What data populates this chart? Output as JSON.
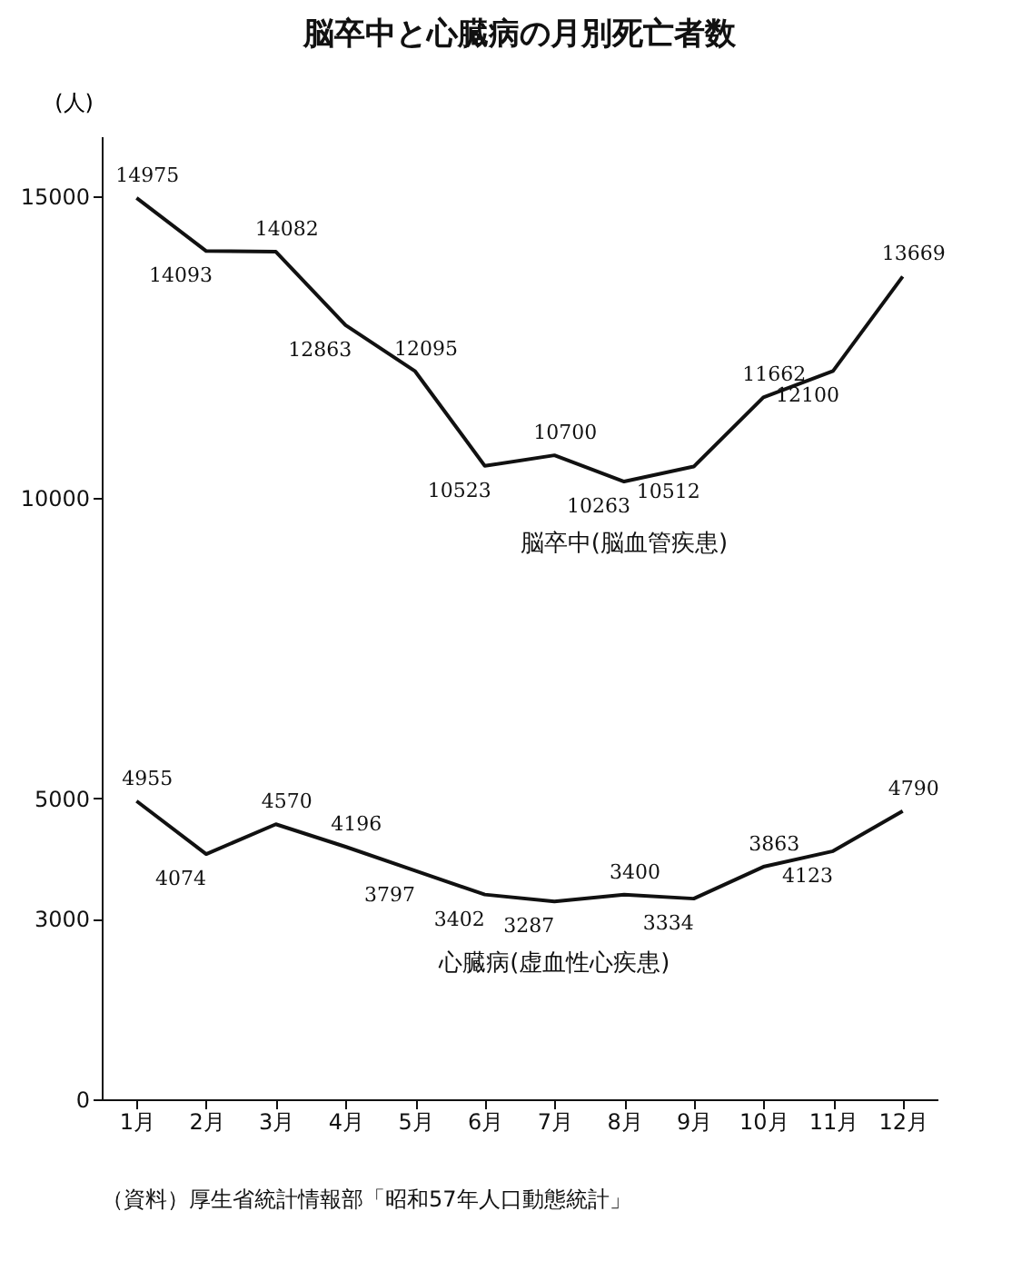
{
  "chart_data": {
    "type": "line",
    "title": "脳卒中と心臓病の月別死亡者数",
    "ylabel": "(人)",
    "categories": [
      "1月",
      "2月",
      "3月",
      "4月",
      "5月",
      "6月",
      "7月",
      "8月",
      "9月",
      "10月",
      "11月",
      "12月"
    ],
    "series": [
      {
        "name": "脳卒中(脳血管疾患)",
        "color": "#111111",
        "values": [
          14975,
          14093,
          14082,
          12863,
          12095,
          10523,
          10700,
          10263,
          10512,
          11662,
          12100,
          13669
        ]
      },
      {
        "name": "心臓病(虚血性心疾患)",
        "color": "#111111",
        "values": [
          4955,
          4074,
          4570,
          4196,
          3797,
          3402,
          3287,
          3400,
          3334,
          3863,
          4123,
          4790
        ]
      }
    ],
    "ylim": [
      0,
      16000
    ],
    "yticks": [
      0,
      3000,
      5000,
      10000,
      15000
    ],
    "grid": false,
    "data_labels": true,
    "annotations": [
      "（資料）厚生省統計情報部「昭和57年人口動態統計」"
    ]
  }
}
